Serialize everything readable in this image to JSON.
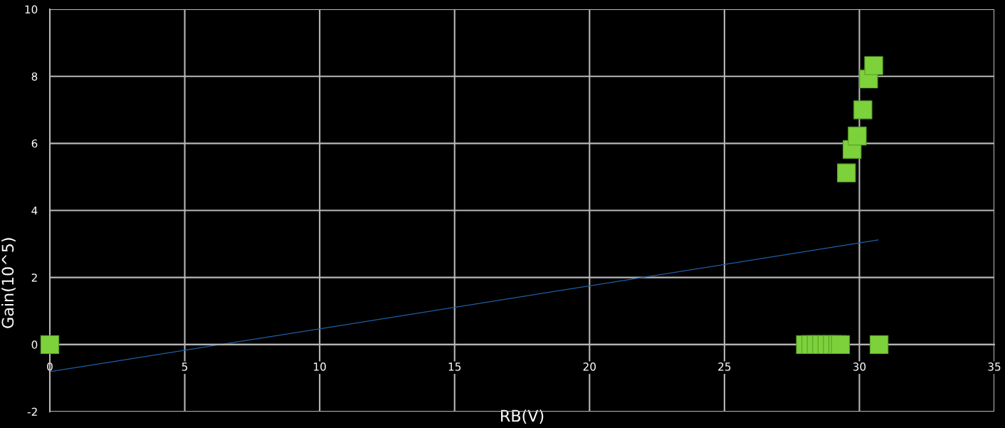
{
  "chart_data": {
    "type": "scatter",
    "xlabel": "RB(V)",
    "ylabel": "Gain(10^5)",
    "xlim": [
      0,
      35
    ],
    "xticks": [
      0,
      5,
      10,
      15,
      20,
      25,
      30,
      35
    ],
    "ylim": [
      -2,
      10
    ],
    "yticks": [
      -2,
      0,
      2,
      4,
      6,
      8,
      10
    ],
    "grid": true,
    "marker": "square",
    "series": [
      {
        "color": "#7dd13b",
        "x": [
          0,
          28.0,
          28.2,
          28.4,
          28.6,
          28.8,
          29.0,
          29.2,
          29.3,
          30.73,
          29.52,
          29.73,
          29.92,
          30.13,
          30.34,
          30.53
        ],
        "values": [
          0,
          0,
          0,
          0,
          0,
          0,
          0,
          0,
          0,
          0,
          5.12,
          5.82,
          6.22,
          7.0,
          7.92,
          8.32
        ]
      },
      {
        "type": "line",
        "marker": "none",
        "color": "#1f5fa8",
        "x": [
          0,
          30.7
        ],
        "values": [
          -0.81,
          3.12
        ]
      }
    ]
  }
}
